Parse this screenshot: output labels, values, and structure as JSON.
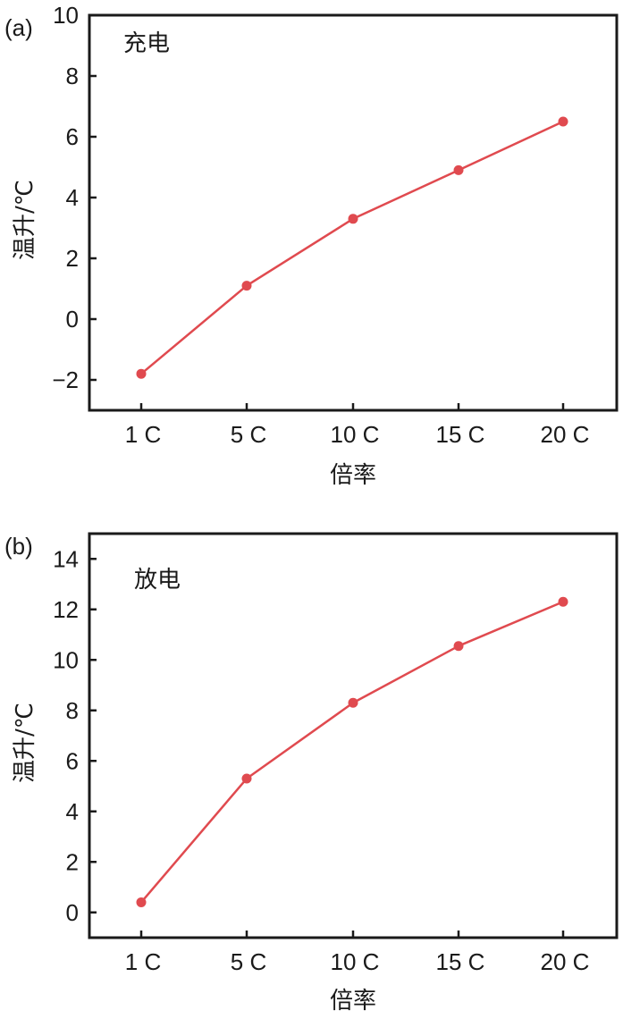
{
  "chart_data": [
    {
      "type": "line",
      "panel_label": "(a)",
      "annotation": "充电",
      "xlabel": "倍率",
      "ylabel": "温升/℃",
      "categories": [
        "1 C",
        "5 C",
        "10 C",
        "15 C",
        "20 C"
      ],
      "ylim": [
        -3,
        10
      ],
      "yticks": [
        -2,
        0,
        2,
        4,
        6,
        8,
        10
      ],
      "ytick_labels": [
        "−2",
        "0",
        "2",
        "4",
        "6",
        "8",
        "10"
      ],
      "series": [
        {
          "values": [
            -1.8,
            1.1,
            3.3,
            4.9,
            6.5
          ],
          "color": "#e04a4f"
        }
      ],
      "grid": false
    },
    {
      "type": "line",
      "panel_label": "(b)",
      "annotation": "放电",
      "xlabel": "倍率",
      "ylabel": "温升/℃",
      "categories": [
        "1 C",
        "5 C",
        "10 C",
        "15 C",
        "20 C"
      ],
      "ylim": [
        -1,
        15
      ],
      "yticks": [
        0,
        2,
        4,
        6,
        8,
        10,
        12,
        14
      ],
      "ytick_labels": [
        "0",
        "2",
        "4",
        "6",
        "8",
        "10",
        "12",
        "14"
      ],
      "series": [
        {
          "values": [
            0.4,
            5.3,
            8.3,
            10.55,
            12.3
          ],
          "color": "#e04a4f"
        }
      ],
      "grid": false
    }
  ]
}
